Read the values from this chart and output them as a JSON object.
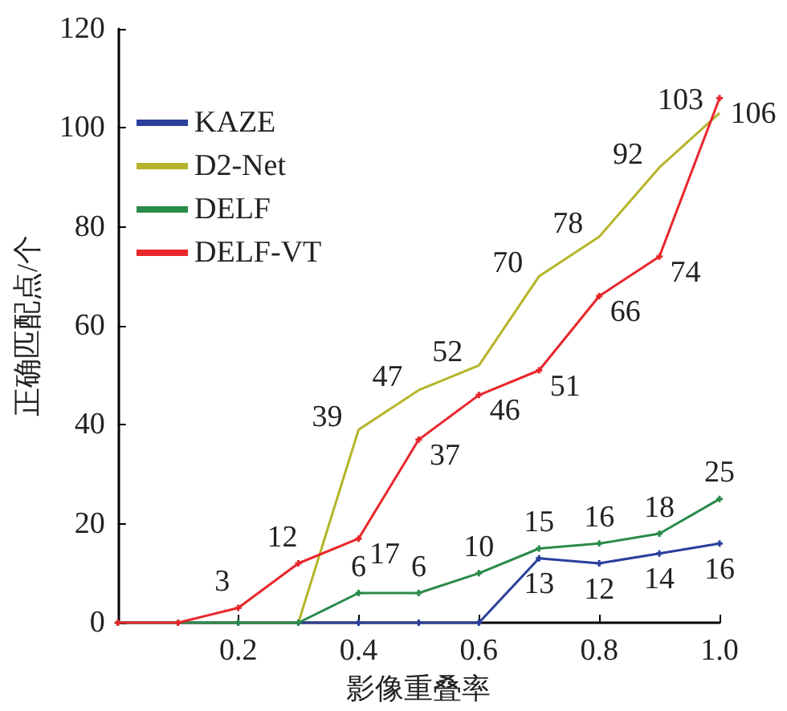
{
  "chart_data": {
    "type": "line",
    "xlabel": "影像重叠率",
    "ylabel": "正确匹配点/个",
    "x": [
      0,
      0.1,
      0.2,
      0.3,
      0.4,
      0.5,
      0.6,
      0.7,
      0.8,
      0.9,
      1.0
    ],
    "xlim": [
      0,
      1
    ],
    "xticks": [
      0.2,
      0.4,
      0.6,
      0.8,
      {
        "value": 1,
        "label": "1.0"
      }
    ],
    "ylim": [
      0,
      120
    ],
    "yticks": [
      0,
      20,
      40,
      60,
      80,
      100,
      120
    ],
    "grid": false,
    "legend": "top left",
    "marker": "cross",
    "line_style": "solid",
    "series": [
      {
        "name": "KAZE",
        "color": "#2a3f9c",
        "values": [
          null,
          null,
          0,
          0,
          0,
          0,
          0,
          13,
          12,
          14,
          16
        ],
        "value_labels": [
          null,
          null,
          null,
          null,
          null,
          null,
          null,
          "13",
          "12",
          "14",
          "16"
        ]
      },
      {
        "name": "D2-Net",
        "color": "#b5b52a",
        "marker": "none",
        "values": [
          null,
          null,
          0,
          0,
          39,
          47,
          52,
          70,
          78,
          92,
          103
        ],
        "value_labels": [
          null,
          null,
          null,
          null,
          "39",
          "47",
          "52",
          "70",
          "78",
          "92",
          "103"
        ]
      },
      {
        "name": "DELF",
        "color": "#2a8a4a",
        "values": [
          0,
          0,
          0,
          0,
          6,
          6,
          10,
          15,
          16,
          18,
          25
        ],
        "value_labels": [
          null,
          null,
          null,
          null,
          "6",
          "6",
          "10",
          "15",
          "16",
          "18",
          "25"
        ]
      },
      {
        "name": "DELF-VT",
        "color": "#e8262b",
        "values": [
          0,
          0,
          3,
          12,
          17,
          37,
          46,
          51,
          66,
          74,
          106
        ],
        "value_labels": [
          null,
          null,
          "3",
          "12",
          "17",
          "37",
          "46",
          "51",
          "66",
          "74",
          "106"
        ]
      }
    ]
  }
}
